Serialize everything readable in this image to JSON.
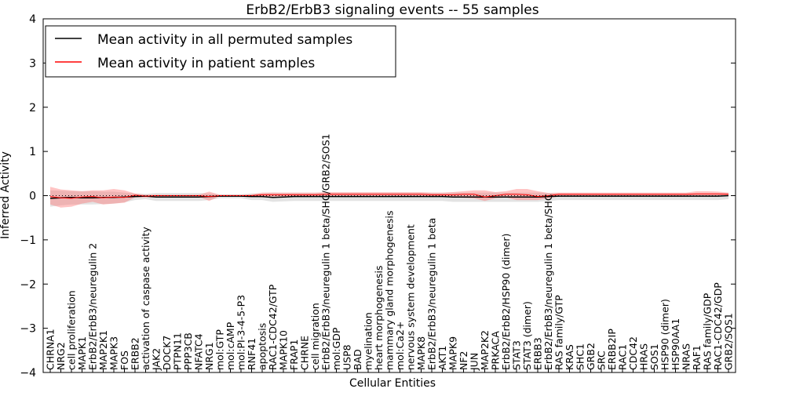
{
  "chart_data": {
    "type": "line",
    "title": "ErbB2/ErbB3 signaling events -- 55 samples",
    "xlabel": "Cellular Entities",
    "ylabel": "Inferred Activity",
    "ylim": [
      -4,
      4
    ],
    "yticks": [
      -4,
      -3,
      -2,
      -1,
      0,
      1,
      2,
      3,
      4
    ],
    "ytick_labels": [
      "−4",
      "−3",
      "−2",
      "−1",
      "0",
      "1",
      "2",
      "3",
      "4"
    ],
    "grid": false,
    "legend_position": "top-left",
    "categories": [
      "CHRNA1",
      "NRG2",
      "cell proliferation",
      "MAPK1",
      "ErbB2/ErbB3/neuregulin 2",
      "MAP2K1",
      "MAPK3",
      "FOS",
      "ERBB2",
      "activation of caspase activity",
      "JAK2",
      "DOCK7",
      "PTPN11",
      "PPP3CB",
      "NFATC4",
      "NRG1",
      "mol:GTP",
      "mol:cAMP",
      "mol:PI-3-4-5-P3",
      "RNF41",
      "apoptosis",
      "RAC1-CDC42/GTP",
      "MAPK10",
      "FRAP1",
      "CHRNE",
      "cell migration",
      "ErbB2/ErbB3/neuregulin 1 beta/SHC/GRB2/SOS1",
      "mol:GDP",
      "USP8",
      "BAD",
      "myelination",
      "heart morphogenesis",
      "mammary gland morphogenesis",
      "mol:Ca2+",
      "nervous system development",
      "MAPK8",
      "ErbB2/ErbB3/neuregulin 1 beta",
      "AKT1",
      "MAPK9",
      "NF2",
      "JUN",
      "MAP2K2",
      "PRKACA",
      "ErbB2/ErbB2/HSP90 (dimer)",
      "STAT3",
      "STAT3 (dimer)",
      "ERBB3",
      "ErbB2/ErbB3/neuregulin 1 beta/SHC",
      "RAS family/GTP",
      "KRAS",
      "SHC1",
      "GRB2",
      "SRC",
      "ERBB2IP",
      "RAC1",
      "CDC42",
      "HRAS",
      "SOS1",
      "HSP90 (dimer)",
      "HSP90AA1",
      "NRAS",
      "RAF1",
      "RAS family/GDP",
      "RAC1-CDC42/GDP",
      "GRB2/SOS1"
    ],
    "series": [
      {
        "name": "Mean activity in all permuted samples",
        "color": "#000000",
        "values": [
          -0.06,
          -0.05,
          -0.04,
          -0.05,
          -0.05,
          -0.04,
          -0.04,
          -0.03,
          -0.02,
          -0.01,
          -0.03,
          -0.03,
          -0.03,
          -0.03,
          -0.03,
          -0.02,
          -0.01,
          -0.01,
          -0.01,
          -0.02,
          -0.02,
          -0.04,
          -0.03,
          -0.02,
          -0.02,
          -0.02,
          -0.02,
          -0.02,
          -0.02,
          -0.02,
          -0.02,
          -0.02,
          -0.02,
          -0.02,
          -0.02,
          -0.02,
          -0.02,
          -0.02,
          -0.03,
          -0.03,
          -0.03,
          -0.03,
          -0.03,
          -0.03,
          -0.03,
          -0.03,
          -0.03,
          -0.02,
          -0.01,
          -0.01,
          -0.01,
          -0.01,
          -0.01,
          -0.01,
          -0.01,
          -0.01,
          -0.01,
          -0.01,
          -0.01,
          -0.01,
          -0.01,
          -0.01,
          -0.01,
          -0.01,
          0.0
        ],
        "band_low": [
          -0.25,
          -0.22,
          -0.2,
          -0.2,
          -0.2,
          -0.19,
          -0.18,
          -0.15,
          -0.1,
          -0.08,
          -0.12,
          -0.12,
          -0.12,
          -0.12,
          -0.12,
          -0.1,
          -0.06,
          -0.06,
          -0.06,
          -0.1,
          -0.1,
          -0.14,
          -0.13,
          -0.12,
          -0.12,
          -0.12,
          -0.12,
          -0.12,
          -0.12,
          -0.12,
          -0.12,
          -0.12,
          -0.12,
          -0.12,
          -0.12,
          -0.12,
          -0.12,
          -0.12,
          -0.14,
          -0.14,
          -0.14,
          -0.14,
          -0.14,
          -0.14,
          -0.14,
          -0.14,
          -0.14,
          -0.12,
          -0.1,
          -0.1,
          -0.1,
          -0.1,
          -0.1,
          -0.1,
          -0.1,
          -0.1,
          -0.1,
          -0.1,
          -0.1,
          -0.1,
          -0.1,
          -0.1,
          -0.1,
          -0.1,
          -0.08
        ],
        "band_high": [
          0.12,
          0.11,
          0.1,
          0.1,
          0.1,
          0.09,
          0.09,
          0.07,
          0.05,
          0.04,
          0.06,
          0.06,
          0.06,
          0.06,
          0.06,
          0.05,
          0.03,
          0.03,
          0.03,
          0.05,
          0.05,
          0.07,
          0.06,
          0.06,
          0.06,
          0.06,
          0.06,
          0.06,
          0.06,
          0.06,
          0.06,
          0.06,
          0.06,
          0.06,
          0.06,
          0.06,
          0.06,
          0.06,
          0.07,
          0.07,
          0.07,
          0.07,
          0.07,
          0.07,
          0.07,
          0.07,
          0.07,
          0.06,
          0.05,
          0.05,
          0.05,
          0.05,
          0.05,
          0.05,
          0.05,
          0.05,
          0.05,
          0.05,
          0.05,
          0.05,
          0.05,
          0.05,
          0.05,
          0.05,
          0.06
        ]
      },
      {
        "name": "Mean activity in patient samples",
        "color": "#ff0000",
        "values": [
          -0.02,
          -0.05,
          -0.06,
          -0.03,
          -0.02,
          -0.05,
          -0.03,
          -0.04,
          0.01,
          -0.01,
          0.0,
          0.0,
          0.0,
          0.0,
          0.0,
          -0.02,
          0.0,
          0.0,
          0.0,
          0.0,
          0.02,
          0.02,
          0.02,
          0.02,
          0.02,
          0.02,
          0.03,
          0.03,
          0.03,
          0.03,
          0.03,
          0.03,
          0.03,
          0.03,
          0.03,
          0.03,
          0.02,
          0.02,
          0.02,
          0.03,
          0.03,
          -0.03,
          0.0,
          0.03,
          0.03,
          0.02,
          -0.02,
          0.0,
          0.03,
          0.03,
          0.03,
          0.03,
          0.03,
          0.03,
          0.03,
          0.03,
          0.03,
          0.03,
          0.03,
          0.03,
          0.03,
          0.04,
          0.04,
          0.04,
          0.03
        ],
        "band_low": [
          -0.2,
          -0.27,
          -0.25,
          -0.18,
          -0.14,
          -0.2,
          -0.18,
          -0.16,
          -0.04,
          -0.04,
          -0.02,
          -0.02,
          -0.02,
          -0.02,
          -0.02,
          -0.12,
          -0.01,
          -0.01,
          -0.01,
          -0.02,
          -0.04,
          -0.02,
          -0.02,
          -0.02,
          -0.02,
          -0.02,
          -0.02,
          -0.02,
          -0.02,
          -0.02,
          -0.02,
          -0.02,
          -0.02,
          -0.02,
          -0.02,
          -0.02,
          -0.03,
          -0.03,
          -0.03,
          -0.05,
          -0.06,
          -0.12,
          -0.06,
          -0.04,
          -0.1,
          -0.1,
          -0.1,
          -0.06,
          -0.02,
          -0.02,
          -0.02,
          -0.02,
          -0.02,
          -0.02,
          -0.02,
          -0.02,
          -0.02,
          -0.02,
          -0.02,
          -0.02,
          -0.02,
          -0.02,
          -0.02,
          -0.02,
          -0.01
        ],
        "band_high": [
          0.2,
          0.14,
          0.12,
          0.1,
          0.12,
          0.12,
          0.15,
          0.12,
          0.05,
          0.02,
          0.02,
          0.02,
          0.02,
          0.02,
          0.02,
          0.09,
          0.02,
          0.02,
          0.02,
          0.03,
          0.07,
          0.07,
          0.07,
          0.07,
          0.07,
          0.07,
          0.08,
          0.08,
          0.08,
          0.08,
          0.08,
          0.08,
          0.08,
          0.08,
          0.08,
          0.08,
          0.07,
          0.07,
          0.08,
          0.1,
          0.12,
          0.12,
          0.08,
          0.1,
          0.15,
          0.15,
          0.1,
          0.06,
          0.07,
          0.07,
          0.07,
          0.07,
          0.07,
          0.07,
          0.07,
          0.07,
          0.07,
          0.07,
          0.07,
          0.07,
          0.07,
          0.1,
          0.1,
          0.09,
          0.07
        ]
      }
    ],
    "reference_line": {
      "y": 0,
      "style": "dotted"
    }
  }
}
